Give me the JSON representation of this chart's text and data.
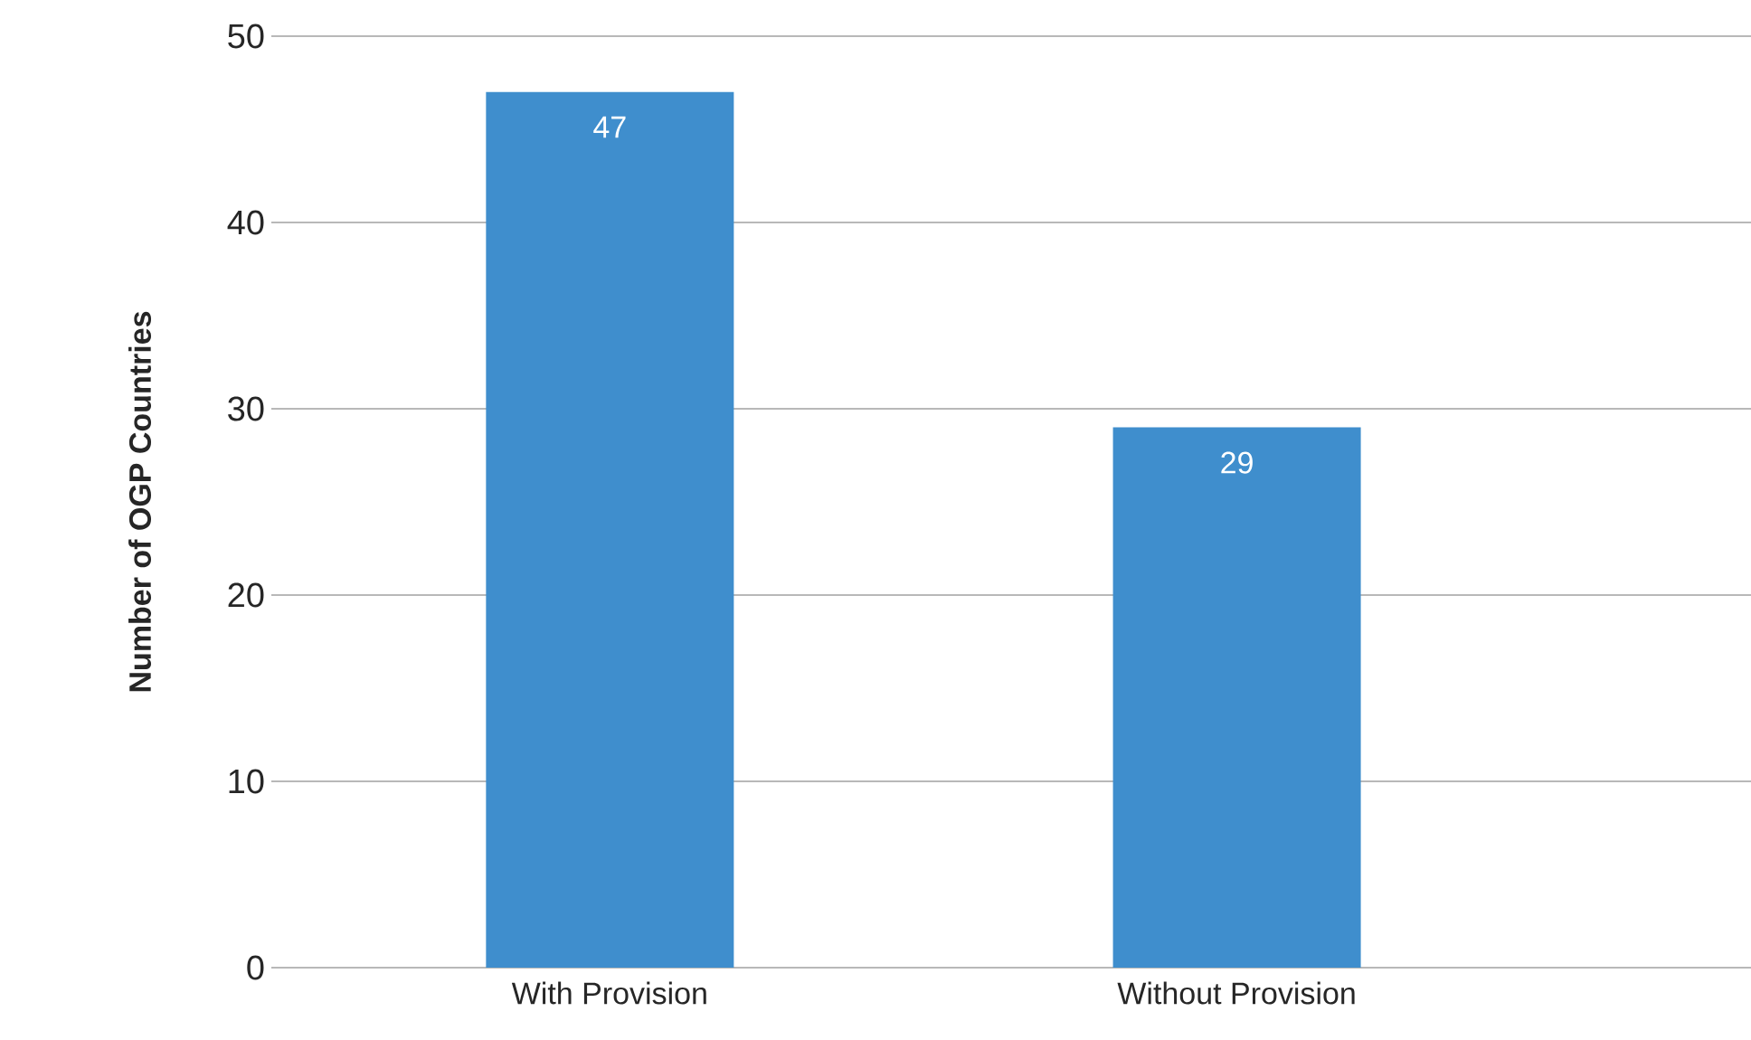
{
  "chart_data": {
    "type": "bar",
    "ylabel": "Number of OGP Countries",
    "categories": [
      "With Provision",
      "Without Provision"
    ],
    "values": [
      47,
      29
    ],
    "color": "#3f8ecd",
    "ylim": [
      0,
      50
    ],
    "yticks": [
      0,
      10,
      20,
      30,
      40,
      50
    ],
    "grid": "y",
    "data_labels": true
  }
}
